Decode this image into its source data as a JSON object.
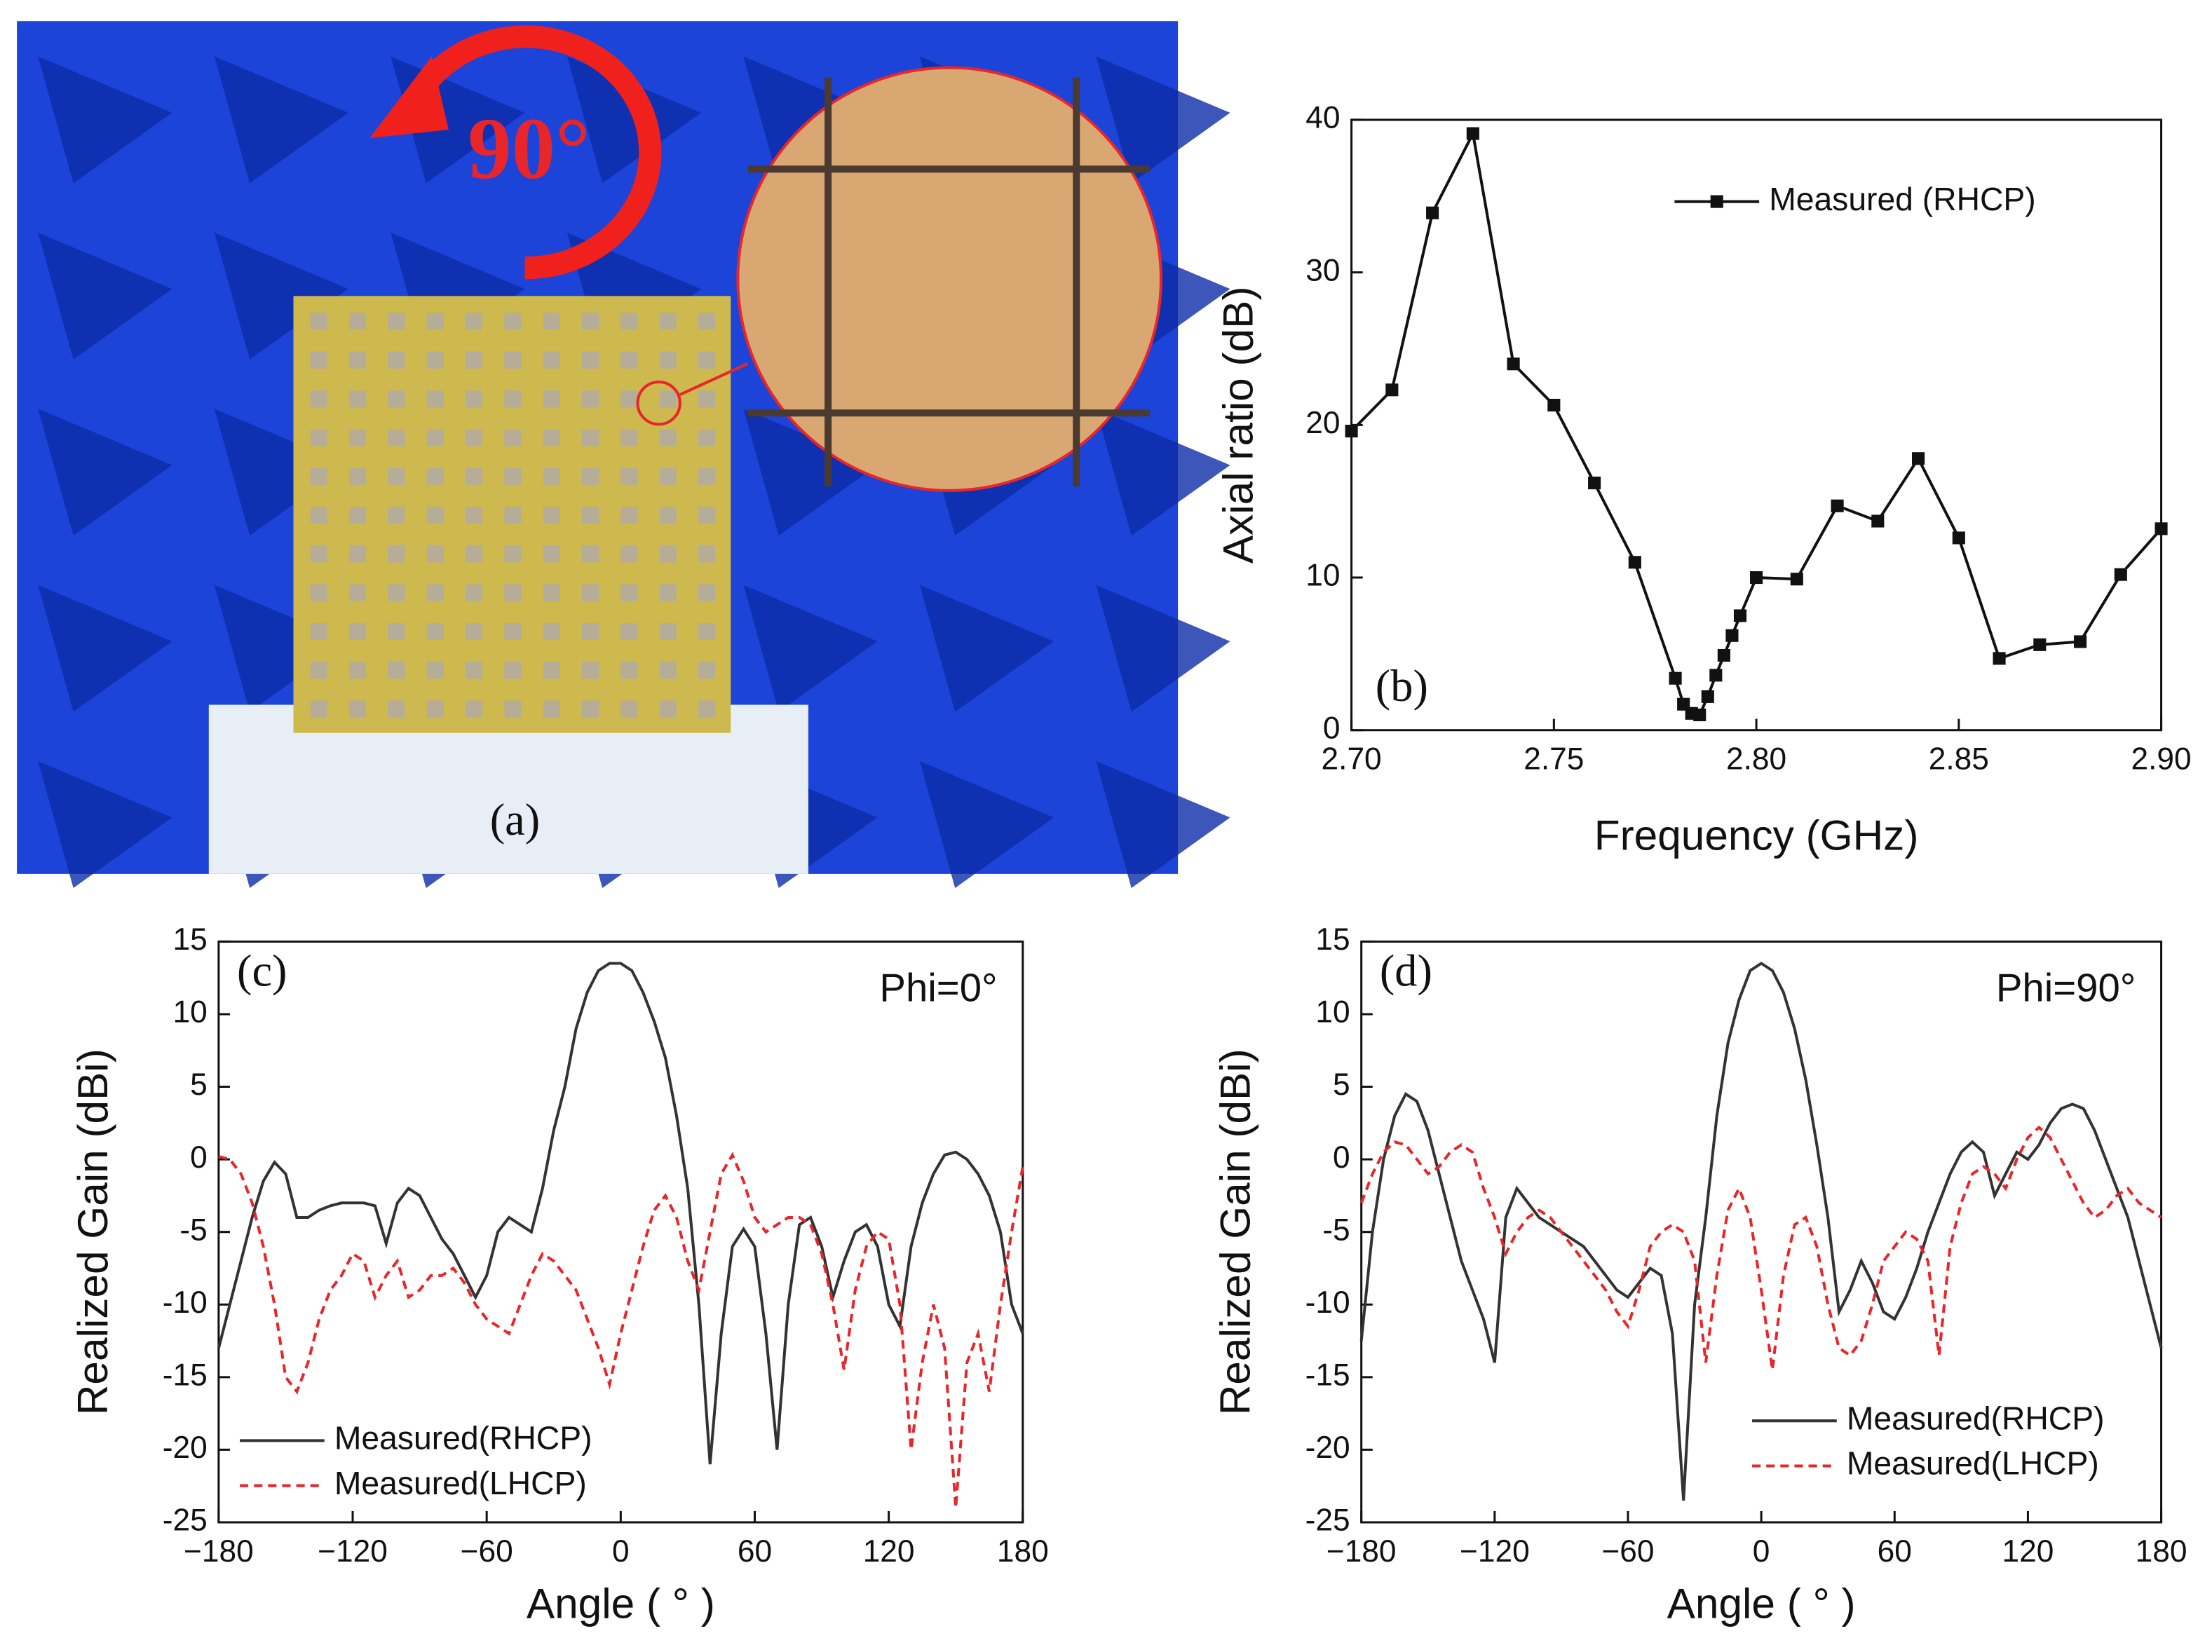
{
  "photo": {
    "annotation": "90°",
    "label": "(a)"
  },
  "chart_data": [
    {
      "type": "line",
      "label": "(b)",
      "xlabel": "Frequency (GHz)",
      "ylabel": "Axial ratio (dB)",
      "x": [
        2.7,
        2.71,
        2.72,
        2.73,
        2.74,
        2.75,
        2.76,
        2.77,
        2.78,
        2.782,
        2.784,
        2.786,
        2.788,
        2.79,
        2.792,
        2.794,
        2.796,
        2.8,
        2.81,
        2.82,
        2.83,
        2.84,
        2.85,
        2.86,
        2.87,
        2.88,
        2.89,
        2.9
      ],
      "series": [
        {
          "name": "Measured (RHCP)",
          "color": "#111111",
          "marker": "square",
          "linestyle": "solid",
          "values": [
            19.6,
            22.3,
            33.9,
            39.1,
            24.0,
            21.3,
            16.2,
            11.0,
            3.4,
            1.7,
            1.1,
            1.0,
            2.2,
            3.6,
            4.9,
            6.2,
            7.5,
            10.0,
            9.9,
            14.7,
            13.7,
            17.8,
            12.6,
            4.7,
            5.6,
            5.8,
            10.2,
            13.2
          ]
        }
      ],
      "xlim": [
        2.7,
        2.9
      ],
      "xticks": [
        {
          "value": 2.7,
          "label": "2.70"
        },
        {
          "value": 2.75,
          "label": "2.75"
        },
        {
          "value": 2.8,
          "label": "2.80"
        },
        {
          "value": 2.85,
          "label": "2.85"
        },
        {
          "value": 2.9,
          "label": "2.90"
        }
      ],
      "ylim": [
        0,
        40
      ],
      "yticks": [
        0,
        10,
        20,
        30,
        40
      ],
      "legend": "upper right"
    },
    {
      "type": "line",
      "label": "(c)",
      "annotation": "Phi=0°",
      "xlabel": "Angle ( ° )",
      "ylabel": "Realized Gain (dBi)",
      "x": [
        -180,
        -175,
        -170,
        -165,
        -160,
        -155,
        -150,
        -145,
        -140,
        -135,
        -130,
        -125,
        -120,
        -115,
        -110,
        -105,
        -100,
        -95,
        -90,
        -85,
        -80,
        -75,
        -70,
        -65,
        -60,
        -55,
        -50,
        -45,
        -40,
        -35,
        -30,
        -25,
        -20,
        -15,
        -10,
        -5,
        0,
        5,
        10,
        15,
        20,
        25,
        30,
        35,
        40,
        45,
        50,
        55,
        60,
        65,
        70,
        75,
        80,
        85,
        90,
        95,
        100,
        105,
        110,
        115,
        120,
        125,
        130,
        135,
        140,
        145,
        150,
        155,
        160,
        165,
        170,
        175,
        180
      ],
      "series": [
        {
          "name": "Measured(RHCP)",
          "color": "#333333",
          "linestyle": "solid",
          "values": [
            -13,
            -10,
            -7,
            -4,
            -1.5,
            -0.2,
            -1,
            -4,
            -4,
            -3.5,
            -3.2,
            -3,
            -3,
            -3,
            -3.2,
            -5.8,
            -3,
            -2,
            -2.5,
            -4,
            -5.5,
            -6.5,
            -8,
            -9.5,
            -8,
            -5,
            -4,
            -4.5,
            -5,
            -2,
            2,
            5,
            9,
            11.5,
            13,
            13.5,
            13.5,
            13,
            11.5,
            9.5,
            7,
            3,
            -2,
            -10,
            -21,
            -12,
            -6,
            -4.8,
            -6,
            -12,
            -20,
            -10,
            -4.5,
            -4,
            -6,
            -9.5,
            -7,
            -5,
            -4.5,
            -6,
            -10,
            -11.5,
            -6,
            -3,
            -1,
            0.3,
            0.5,
            0,
            -1,
            -2.5,
            -5,
            -10,
            -12
          ]
        },
        {
          "name": "Measured(LHCP)",
          "color": "#e8262a",
          "linestyle": "dashed",
          "values": [
            0.2,
            0,
            -1,
            -3,
            -6,
            -10,
            -15,
            -16,
            -14,
            -11,
            -9,
            -8,
            -6.5,
            -7,
            -9.5,
            -8,
            -7,
            -9.5,
            -9,
            -8,
            -8,
            -7.5,
            -8.5,
            -10,
            -11,
            -11.5,
            -12,
            -10,
            -8,
            -6.5,
            -7,
            -8,
            -9,
            -11,
            -13,
            -15.5,
            -12,
            -9,
            -6,
            -3.5,
            -2.5,
            -4,
            -7,
            -9,
            -5,
            -1,
            0.3,
            -1.5,
            -4,
            -5,
            -4.5,
            -4,
            -4,
            -4.5,
            -6.5,
            -10,
            -14.5,
            -9,
            -6,
            -5,
            -5.5,
            -10,
            -20,
            -14,
            -10,
            -13,
            -24,
            -14,
            -12,
            -16,
            -10,
            -5,
            -0.5
          ]
        }
      ],
      "xlim": [
        -180,
        180
      ],
      "xticks": [
        {
          "value": -180,
          "label": "−180"
        },
        {
          "value": -120,
          "label": "−120"
        },
        {
          "value": -60,
          "label": "−60"
        },
        0,
        60,
        120,
        180
      ],
      "ylim": [
        -25,
        15
      ],
      "yticks": [
        -25,
        -20,
        -15,
        -10,
        -5,
        0,
        5,
        10,
        15
      ],
      "legend": "lower left"
    },
    {
      "type": "line",
      "label": "(d)",
      "annotation": "Phi=90°",
      "xlabel": "Angle ( ° )",
      "ylabel": "Realized Gain (dBi)",
      "x": [
        -180,
        -175,
        -170,
        -165,
        -160,
        -155,
        -150,
        -145,
        -140,
        -135,
        -130,
        -125,
        -120,
        -115,
        -110,
        -105,
        -100,
        -95,
        -90,
        -85,
        -80,
        -75,
        -70,
        -65,
        -60,
        -55,
        -50,
        -45,
        -40,
        -35,
        -30,
        -25,
        -20,
        -15,
        -10,
        -5,
        0,
        5,
        10,
        15,
        20,
        25,
        30,
        35,
        40,
        45,
        50,
        55,
        60,
        65,
        70,
        75,
        80,
        85,
        90,
        95,
        100,
        105,
        110,
        115,
        120,
        125,
        130,
        135,
        140,
        145,
        150,
        155,
        160,
        165,
        170,
        175,
        180
      ],
      "series": [
        {
          "name": "Measured(RHCP)",
          "color": "#333333",
          "linestyle": "solid",
          "values": [
            -12.5,
            -5,
            0,
            3,
            4.5,
            4,
            2,
            -1,
            -4,
            -7,
            -9,
            -11,
            -14,
            -4,
            -2,
            -3,
            -4,
            -4.5,
            -5,
            -5.5,
            -6,
            -7,
            -8,
            -9,
            -9.5,
            -8.5,
            -7.5,
            -8,
            -12,
            -23.5,
            -10,
            -4,
            3,
            8,
            11,
            13,
            13.5,
            13,
            11.5,
            9,
            5.5,
            1,
            -4,
            -10.5,
            -9,
            -7,
            -8.5,
            -10.5,
            -11,
            -9.5,
            -7.5,
            -5,
            -3,
            -1,
            0.5,
            1.2,
            0.5,
            -2.5,
            -1,
            0.5,
            0,
            1,
            2.5,
            3.5,
            3.8,
            3.5,
            2,
            0,
            -2,
            -4,
            -7,
            -10,
            -13
          ]
        },
        {
          "name": "Measured(LHCP)",
          "color": "#e8262a",
          "linestyle": "dashed",
          "values": [
            -3,
            -1,
            0.5,
            1.2,
            1,
            0,
            -1,
            -0.5,
            0.5,
            1,
            0.5,
            -2,
            -4,
            -6.5,
            -5,
            -4,
            -3.5,
            -4,
            -5,
            -6,
            -7,
            -8,
            -9,
            -10.5,
            -11.5,
            -9,
            -6,
            -5,
            -4.5,
            -5,
            -7,
            -14,
            -8,
            -3.5,
            -2,
            -4,
            -9,
            -14.5,
            -8,
            -4.5,
            -4,
            -6,
            -10,
            -13,
            -13.5,
            -12.5,
            -10,
            -7,
            -6,
            -5,
            -5.5,
            -7,
            -13.5,
            -6,
            -3,
            -1,
            -0.5,
            -1,
            -2,
            0,
            1.5,
            2.2,
            1.5,
            0,
            -1.5,
            -3,
            -4,
            -3.5,
            -2.5,
            -2,
            -3,
            -3.5,
            -4
          ]
        }
      ],
      "xlim": [
        -180,
        180
      ],
      "xticks": [
        {
          "value": -180,
          "label": "−180"
        },
        {
          "value": -120,
          "label": "−120"
        },
        {
          "value": -60,
          "label": "−60"
        },
        0,
        60,
        120,
        180
      ],
      "ylim": [
        -25,
        15
      ],
      "yticks": [
        -25,
        -20,
        -15,
        -10,
        -5,
        0,
        5,
        10,
        15
      ],
      "legend": "lower right"
    }
  ]
}
